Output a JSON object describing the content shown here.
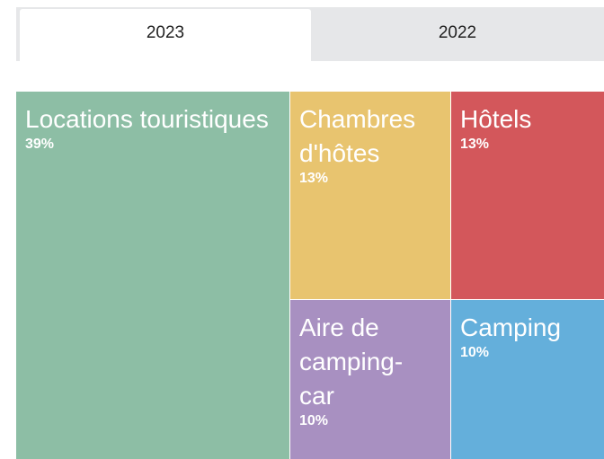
{
  "tabs": [
    "2023",
    "2022"
  ],
  "active_tab": 0,
  "chart_data": {
    "type": "treemap",
    "categories": [
      "Locations touristiques",
      "Chambres d'hôtes",
      "Hôtels",
      "Aire de camping-car",
      "Camping"
    ],
    "values": [
      39,
      13,
      13,
      10,
      10
    ],
    "value_labels": [
      "39%",
      "13%",
      "13%",
      "10%",
      "10%"
    ],
    "colors": [
      "#8dbea5",
      "#e8c46f",
      "#d3575b",
      "#a890c1",
      "#64afdb"
    ]
  }
}
